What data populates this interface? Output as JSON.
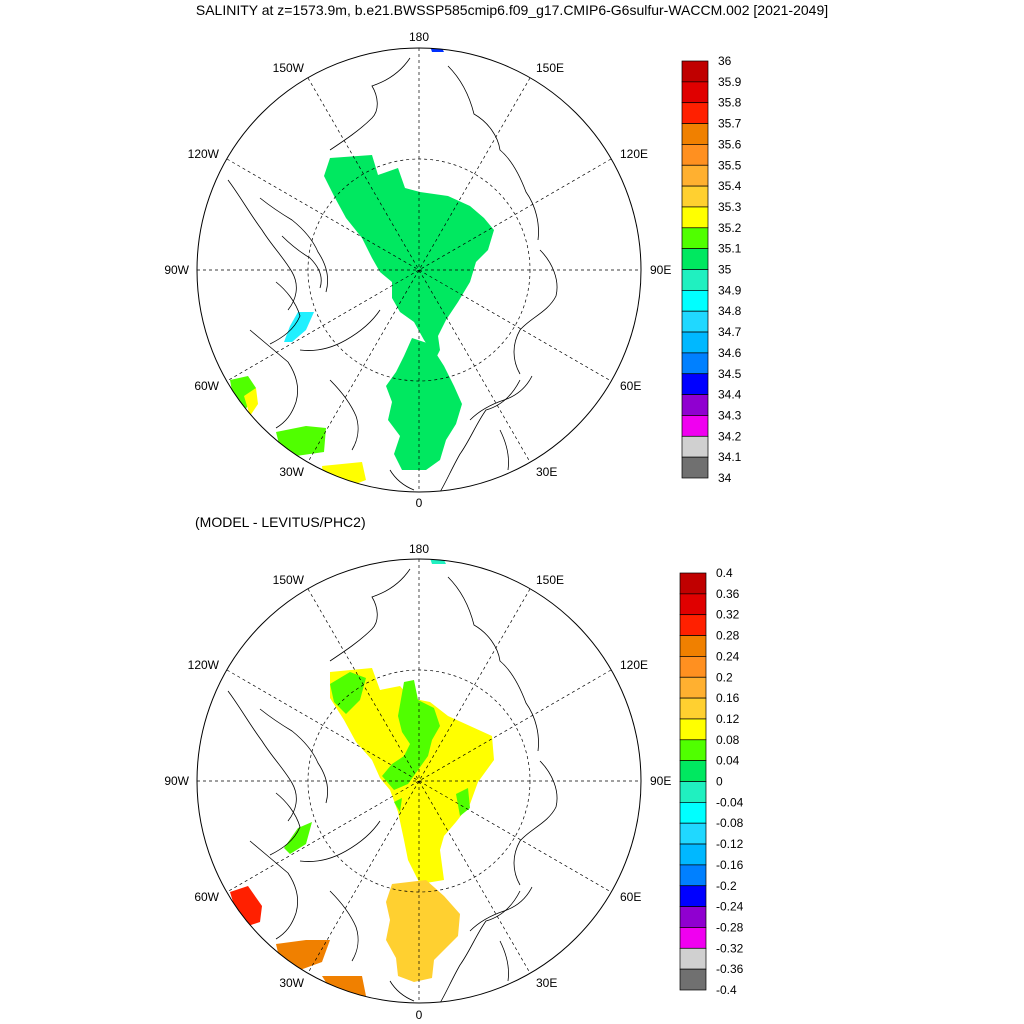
{
  "title": "SALINITY at z=1573.9m, b.e21.BWSSP585cmip6.f09_g17.CMIP6-G6sulfur-WACCM.002 [2021-2049]",
  "subtitle": "(MODEL - LEVITUS/PHC2)",
  "map_labels": {
    "top": "180",
    "bottom": "0",
    "left": "90W",
    "right": "90E",
    "upper_left_1": "150W",
    "upper_left_2": "120W",
    "upper_right_1": "150E",
    "upper_right_2": "120E",
    "lower_left_1": "60W",
    "lower_left_2": "30W",
    "lower_right_1": "60E",
    "lower_right_2": "30E"
  },
  "colorbar_top": {
    "labels": [
      "36",
      "35.9",
      "35.8",
      "35.7",
      "35.6",
      "35.5",
      "35.4",
      "35.3",
      "35.2",
      "35.1",
      "35",
      "34.9",
      "34.8",
      "34.7",
      "34.6",
      "34.5",
      "34.4",
      "34.3",
      "34.2",
      "34.1",
      "34"
    ],
    "colors": [
      "#c00000",
      "#e00000",
      "#ff2000",
      "#f08000",
      "#ff9020",
      "#ffb030",
      "#ffd030",
      "#ffff00",
      "#50ff00",
      "#00e860",
      "#20f0c0",
      "#00ffff",
      "#20d8ff",
      "#00b8ff",
      "#0080ff",
      "#0000ff",
      "#9000d0",
      "#f000f0",
      "#d0d0d0",
      "#707070"
    ]
  },
  "colorbar_bottom": {
    "labels": [
      "0.4",
      "0.36",
      "0.32",
      "0.28",
      "0.24",
      "0.2",
      "0.16",
      "0.12",
      "0.08",
      "0.04",
      "0",
      "-0.04",
      "-0.08",
      "-0.12",
      "-0.16",
      "-0.2",
      "-0.24",
      "-0.28",
      "-0.32",
      "-0.36",
      "-0.4"
    ],
    "colors": [
      "#c00000",
      "#e00000",
      "#ff2000",
      "#f08000",
      "#ff9020",
      "#ffb030",
      "#ffd030",
      "#ffff00",
      "#50ff00",
      "#00e860",
      "#20f0c0",
      "#00ffff",
      "#20d8ff",
      "#00b8ff",
      "#0080ff",
      "#0000ff",
      "#9000d0",
      "#f000f0",
      "#d0d0d0",
      "#707070"
    ]
  }
}
